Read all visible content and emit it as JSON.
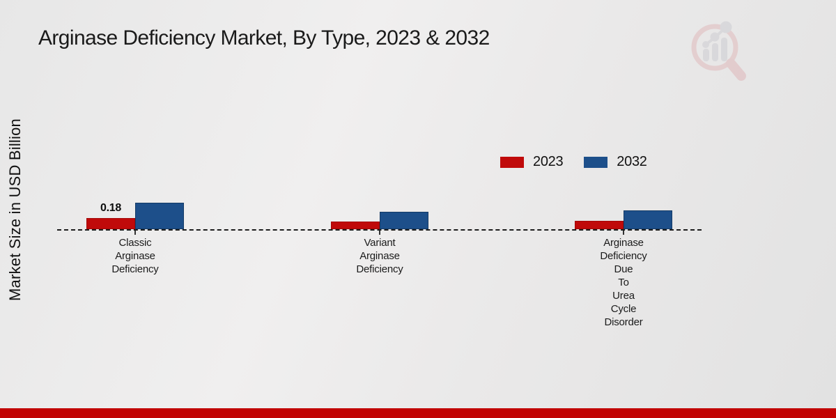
{
  "chart_data": {
    "type": "bar",
    "title": "Arginase Deficiency Market, By Type, 2023 & 2032",
    "ylabel": "Market Size in USD Billion",
    "categories": [
      "Classic Arginase Deficiency",
      "Variant Arginase Deficiency",
      "Arginase Deficiency Due To Urea Cycle Disorder"
    ],
    "series": [
      {
        "name": "2023",
        "color": "#c00a0a",
        "border_color": "#a30707",
        "values": [
          0.18,
          0.12,
          0.13
        ],
        "data_labels": [
          "0.18",
          "",
          ""
        ]
      },
      {
        "name": "2032",
        "color": "#1d4f8a",
        "border_color": "#143a66",
        "values": [
          0.42,
          0.28,
          0.3
        ],
        "data_labels": [
          "",
          "",
          ""
        ]
      }
    ],
    "baseline_value": 0,
    "baseline_style": "dashed",
    "legend_position": "upper-right-of-plot",
    "grid": "off"
  },
  "branding": {
    "watermark_icon": "magnifier-bar-chart-logo",
    "watermark_circle_color": "#dfb0b3",
    "watermark_bar_color": "#c8c8cd",
    "footer_color": "#c10404"
  }
}
